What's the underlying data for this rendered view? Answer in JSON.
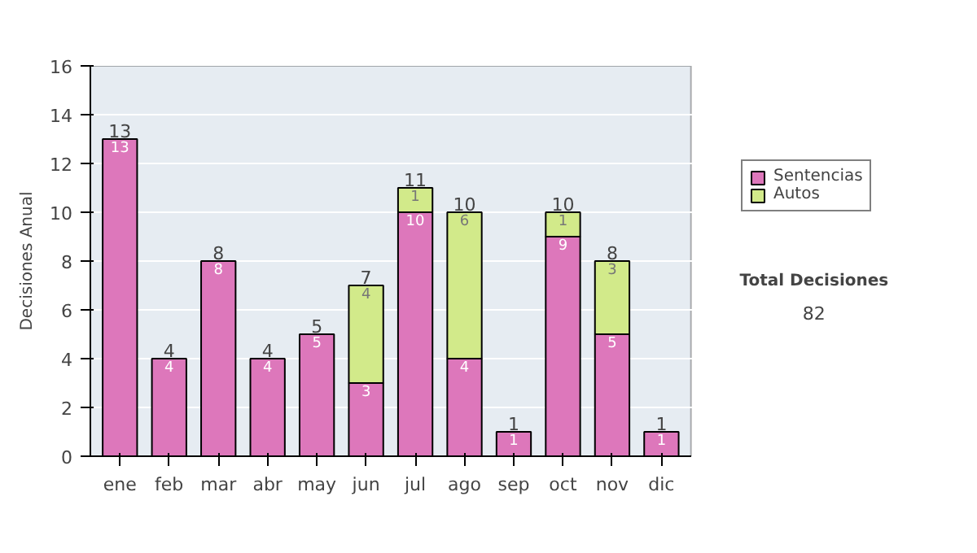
{
  "chart_data": {
    "type": "bar",
    "stacked": true,
    "ylabel": "Decisiones Anual",
    "categories": [
      "ene",
      "feb",
      "mar",
      "abr",
      "may",
      "jun",
      "jul",
      "ago",
      "sep",
      "oct",
      "nov",
      "dic"
    ],
    "series": [
      {
        "name": "Sentencias",
        "color": "#dd77bb",
        "values": [
          13,
          4,
          8,
          4,
          5,
          3,
          10,
          4,
          1,
          9,
          5,
          1
        ]
      },
      {
        "name": "Autos",
        "color": "#d2ea8a",
        "values": [
          null,
          null,
          null,
          null,
          null,
          4,
          1,
          6,
          null,
          1,
          3,
          null
        ]
      }
    ],
    "data_labels": true,
    "totals": [
      "13",
      "4",
      "8",
      "4",
      "5",
      "7",
      "11",
      "10",
      "1",
      "10",
      "8",
      "1"
    ],
    "ylim": [
      0,
      16
    ],
    "yticks": [
      0,
      2,
      4,
      6,
      8,
      10,
      12,
      14,
      16
    ],
    "grid": "y",
    "legend": "right",
    "annotations": [
      "Total Decisiones",
      "82"
    ]
  }
}
